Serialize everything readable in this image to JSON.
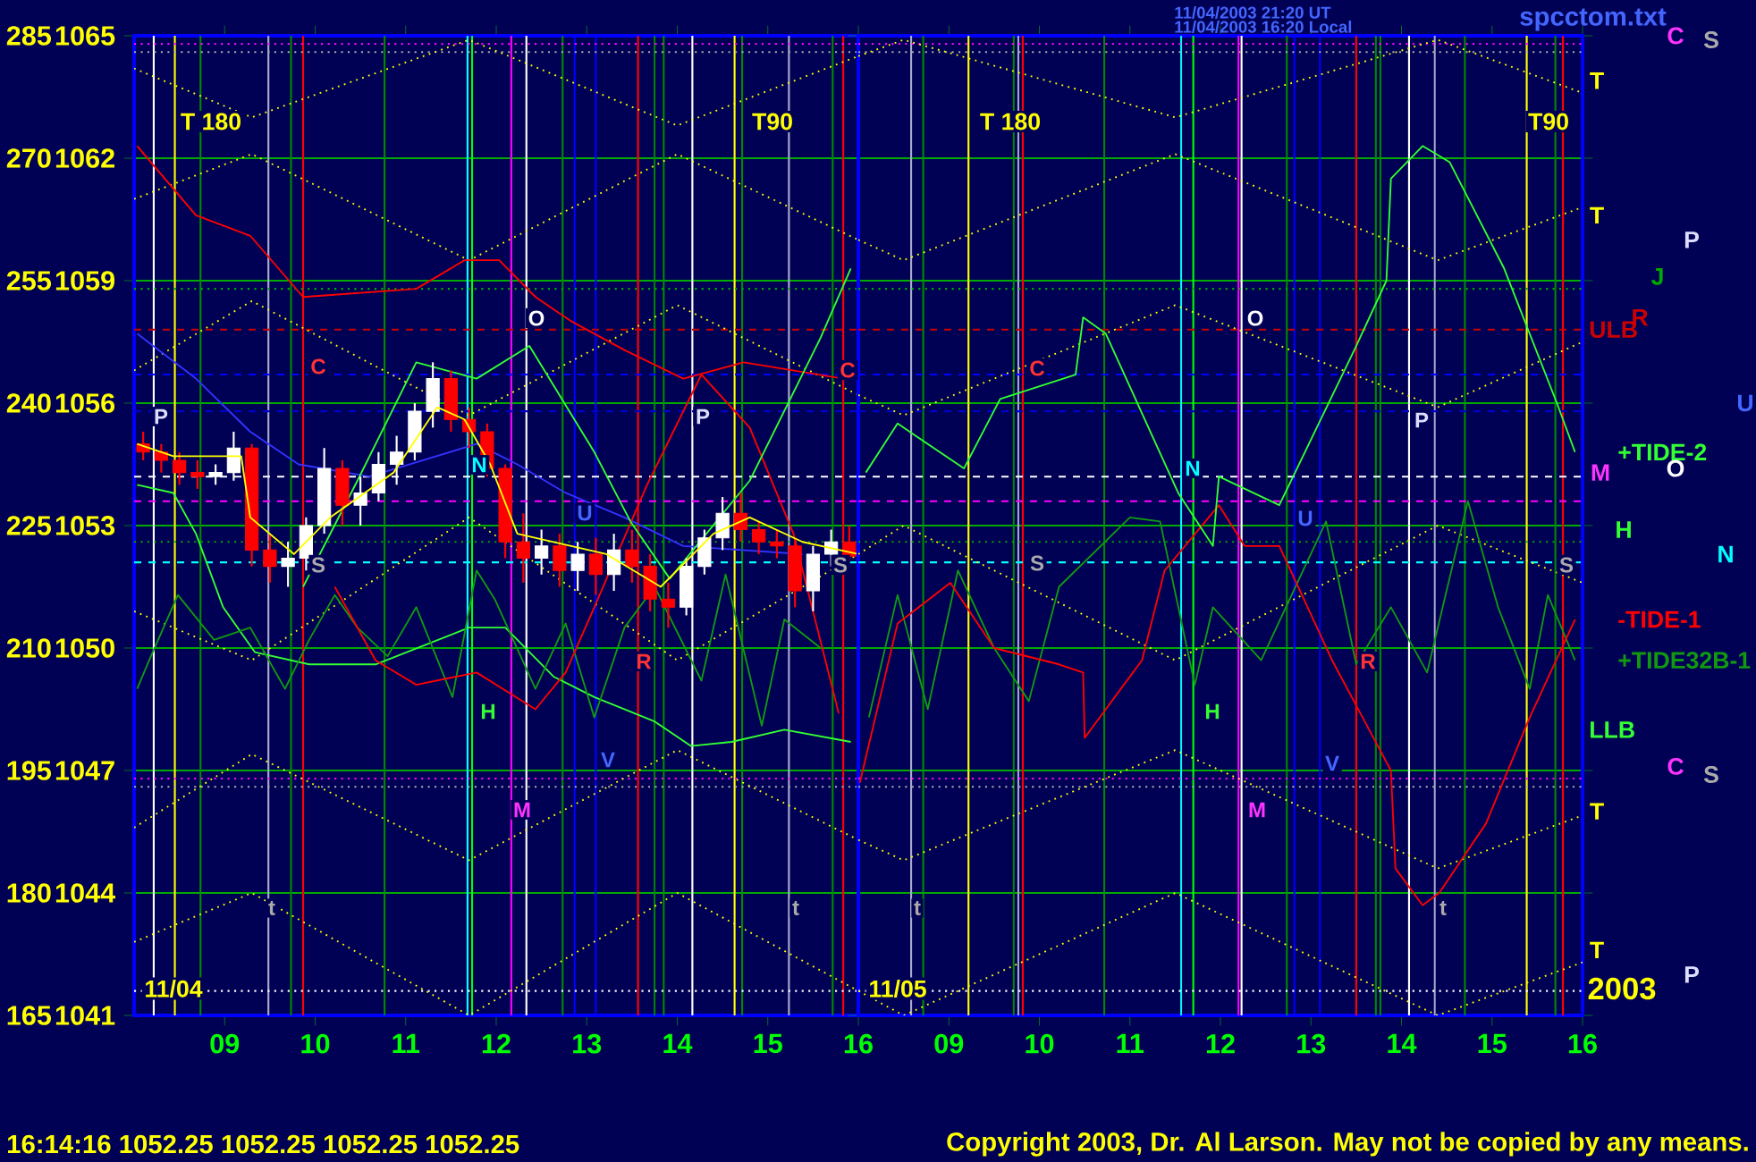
{
  "chart_data": [
    {
      "type": "line",
      "xlim": [
        "2003-11-04T08:00",
        "2003-11-04T16:00"
      ],
      "xticks": [
        {
          "value": "2003-11-04T09:00",
          "label": "09"
        },
        {
          "value": "2003-11-04T10:00",
          "label": "10"
        },
        {
          "value": "2003-11-04T11:00",
          "label": "11"
        },
        {
          "value": "2003-11-04T12:00",
          "label": "12"
        },
        {
          "value": "2003-11-04T13:00",
          "label": "13"
        },
        {
          "value": "2003-11-04T14:00",
          "label": "14"
        },
        {
          "value": "2003-11-04T15:00",
          "label": "15"
        },
        {
          "value": "2003-11-04T16:00",
          "label": "16"
        }
      ],
      "ylim": [
        1041,
        1065
      ],
      "yticks": [
        1041,
        1044,
        1047,
        1050,
        1053,
        1056,
        1059,
        1062,
        1065
      ],
      "y2lim": [
        165,
        285
      ],
      "y2ticks": [
        165,
        180,
        195,
        210,
        225,
        240,
        255,
        270,
        285
      ],
      "grid": "y",
      "series": [
        {
          "color": "#ffff00",
          "line_style": "dotted",
          "x": [
            "2003-11-04T08:00",
            "2003-11-04T09:18",
            "2003-11-04T11:42",
            "2003-11-04T14:00",
            "2003-11-04T16:00"
          ],
          "values": [
            1064.2,
            1063.0,
            1064.9,
            1062.8,
            1064.5
          ]
        },
        {
          "color": "#ffff00",
          "line_style": "dotted",
          "x": [
            "2003-11-04T08:00",
            "2003-11-04T09:18",
            "2003-11-04T11:42",
            "2003-11-04T14:00",
            "2003-11-04T16:00"
          ],
          "values": [
            1061.0,
            1062.1,
            1059.5,
            1062.1,
            1060.0
          ]
        },
        {
          "color": "#ffff00",
          "line_style": "dotted",
          "x": [
            "2003-11-04T08:00",
            "2003-11-04T09:18",
            "2003-11-04T11:42",
            "2003-11-04T14:00",
            "2003-11-04T16:00"
          ],
          "values": [
            1056.8,
            1058.5,
            1055.7,
            1058.4,
            1056.2
          ]
        },
        {
          "color": "#ffff00",
          "line_style": "dotted",
          "x": [
            "2003-11-04T08:00",
            "2003-11-04T09:18",
            "2003-11-04T11:42",
            "2003-11-04T14:00",
            "2003-11-04T16:00"
          ],
          "values": [
            1050.9,
            1049.7,
            1053.2,
            1049.7,
            1052.3
          ]
        },
        {
          "color": "#ffff00",
          "line_style": "dotted",
          "x": [
            "2003-11-04T08:00",
            "2003-11-04T09:18",
            "2003-11-04T11:42",
            "2003-11-04T14:00",
            "2003-11-04T16:00"
          ],
          "values": [
            1045.6,
            1047.4,
            1044.8,
            1047.5,
            1045.3
          ]
        },
        {
          "color": "#ffff00",
          "line_style": "dotted",
          "x": [
            "2003-11-04T08:00",
            "2003-11-04T09:18",
            "2003-11-04T11:42",
            "2003-11-04T14:00",
            "2003-11-04T16:00"
          ],
          "values": [
            1042.8,
            1044.0,
            1041.0,
            1044.0,
            1041.6
          ]
        },
        {
          "color": "#ff0000",
          "x": [
            "2003-11-04T08:02",
            "2003-11-04T08:41",
            "2003-11-04T09:17",
            "2003-11-04T09:52",
            "2003-11-04T11:07",
            "2003-11-04T11:39",
            "2003-11-04T12:02",
            "2003-11-04T12:26",
            "2003-11-04T12:50",
            "2003-11-04T13:25",
            "2003-11-04T14:04",
            "2003-11-04T14:44",
            "2003-11-04T15:50"
          ],
          "values": [
            1062.3,
            1060.6,
            1060.1,
            1058.6,
            1058.8,
            1059.5,
            1059.5,
            1058.6,
            1058.0,
            1057.3,
            1056.6,
            1057.0,
            1056.6
          ]
        },
        {
          "color": "#3333ff",
          "x": [
            "2003-11-04T08:02",
            "2003-11-04T08:41",
            "2003-11-04T09:17",
            "2003-11-04T09:49",
            "2003-11-04T10:36",
            "2003-11-04T11:47",
            "2003-11-04T12:14",
            "2003-11-04T12:46",
            "2003-11-04T13:25",
            "2003-11-04T14:04",
            "2003-11-04T15:23"
          ],
          "values": [
            1057.7,
            1056.6,
            1055.3,
            1054.5,
            1054.2,
            1055.0,
            1054.5,
            1053.8,
            1053.2,
            1052.5,
            1052.3
          ]
        },
        {
          "color": "#33ff33",
          "x": [
            "2003-11-04T08:02",
            "2003-11-04T08:26",
            "2003-11-04T08:41",
            "2003-11-04T08:59",
            "2003-11-04T09:20",
            "2003-11-04T09:56",
            "2003-11-04T10:40",
            "2003-11-04T11:42",
            "2003-11-04T12:06",
            "2003-11-04T12:38",
            "2003-11-04T13:05",
            "2003-11-04T13:45",
            "2003-11-04T14:09",
            "2003-11-04T14:36",
            "2003-11-04T15:11",
            "2003-11-04T15:55"
          ],
          "values": [
            1054.0,
            1053.8,
            1052.8,
            1051.0,
            1049.9,
            1049.6,
            1049.6,
            1050.5,
            1050.5,
            1049.3,
            1048.8,
            1048.2,
            1047.6,
            1047.7,
            1048.0,
            1047.7
          ]
        },
        {
          "color": "#119911",
          "x": [
            "2003-11-04T08:02",
            "2003-11-04T08:10",
            "2003-11-04T08:29",
            "2003-11-04T08:53",
            "2003-11-04T09:17",
            "2003-11-04T09:40",
            "2003-11-04T09:56",
            "2003-11-04T10:13",
            "2003-11-04T10:28",
            "2003-11-04T10:48",
            "2003-11-04T11:07",
            "2003-11-04T11:31",
            "2003-11-04T11:47",
            "2003-11-04T11:59",
            "2003-11-04T12:26",
            "2003-11-04T12:46",
            "2003-11-04T13:05",
            "2003-11-04T13:25",
            "2003-11-04T13:45",
            "2003-11-04T14:16",
            "2003-11-04T14:32",
            "2003-11-04T14:56",
            "2003-11-04T15:11",
            "2003-11-04T15:35"
          ],
          "values": [
            1049.0,
            1049.7,
            1051.3,
            1050.2,
            1050.5,
            1049.0,
            1050.2,
            1051.3,
            1050.5,
            1049.8,
            1051.0,
            1048.8,
            1051.9,
            1051.2,
            1049.0,
            1050.6,
            1048.3,
            1050.5,
            1051.5,
            1049.2,
            1051.8,
            1048.1,
            1050.7,
            1050.0
          ]
        },
        {
          "color": "#ff0000",
          "x": [
            "2003-11-04T10:13",
            "2003-11-04T10:40",
            "2003-11-04T11:07",
            "2003-11-04T11:47",
            "2003-11-04T12:26",
            "2003-11-04T12:46",
            "2003-11-04T13:05",
            "2003-11-04T13:40",
            "2003-11-04T14:16",
            "2003-11-04T14:48",
            "2003-11-04T15:17",
            "2003-11-04T15:47"
          ],
          "values": [
            1051.5,
            1049.7,
            1049.1,
            1049.4,
            1048.5,
            1049.4,
            1051.0,
            1054.0,
            1056.7,
            1055.4,
            1052.8,
            1048.4
          ]
        },
        {
          "color": "#33ff33",
          "x": [
            "2003-11-04T09:52",
            "2003-11-04T10:28",
            "2003-11-04T11:07",
            "2003-11-04T11:47",
            "2003-11-04T12:22",
            "2003-11-04T13:05",
            "2003-11-04T13:29",
            "2003-11-04T13:55",
            "2003-11-04T14:48",
            "2003-11-04T15:35",
            "2003-11-04T15:55"
          ],
          "values": [
            1051.5,
            1054.1,
            1057.0,
            1056.6,
            1057.4,
            1054.8,
            1053.1,
            1051.7,
            1054.1,
            1057.6,
            1059.3
          ]
        },
        {
          "type": "candlestick",
          "x": [
            "2003-11-04T08:06",
            "2003-11-04T08:18",
            "2003-11-04T08:30",
            "2003-11-04T08:42",
            "2003-11-04T08:54",
            "2003-11-04T09:06",
            "2003-11-04T09:18",
            "2003-11-04T09:30",
            "2003-11-04T09:42",
            "2003-11-04T09:54",
            "2003-11-04T10:06",
            "2003-11-04T10:18",
            "2003-11-04T10:30",
            "2003-11-04T10:42",
            "2003-11-04T10:54",
            "2003-11-04T11:06",
            "2003-11-04T11:18",
            "2003-11-04T11:30",
            "2003-11-04T11:42",
            "2003-11-04T11:54",
            "2003-11-04T12:06",
            "2003-11-04T12:18",
            "2003-11-04T12:30",
            "2003-11-04T12:42",
            "2003-11-04T12:54",
            "2003-11-04T13:06",
            "2003-11-04T13:18",
            "2003-11-04T13:30",
            "2003-11-04T13:42",
            "2003-11-04T13:54",
            "2003-11-04T14:06",
            "2003-11-04T14:18",
            "2003-11-04T14:30",
            "2003-11-04T14:42",
            "2003-11-04T14:54",
            "2003-11-04T15:06",
            "2003-11-04T15:18",
            "2003-11-04T15:30",
            "2003-11-04T15:42",
            "2003-11-04T15:54"
          ],
          "ohlc": [
            [
              1055.0,
              1055.3,
              1054.6,
              1054.8
            ],
            [
              1054.8,
              1055.0,
              1054.3,
              1054.6
            ],
            [
              1054.6,
              1054.8,
              1054.0,
              1054.3
            ],
            [
              1054.3,
              1054.6,
              1053.9,
              1054.2
            ],
            [
              1054.2,
              1054.5,
              1054.0,
              1054.3
            ],
            [
              1054.3,
              1055.3,
              1054.1,
              1054.9
            ],
            [
              1054.9,
              1055.0,
              1052.0,
              1052.4
            ],
            [
              1052.4,
              1052.8,
              1051.6,
              1052.0
            ],
            [
              1052.0,
              1052.6,
              1051.5,
              1052.2
            ],
            [
              1052.2,
              1053.2,
              1051.9,
              1053.0
            ],
            [
              1053.0,
              1054.9,
              1052.8,
              1054.4
            ],
            [
              1054.4,
              1054.6,
              1053.0,
              1053.5
            ],
            [
              1053.5,
              1054.2,
              1053.0,
              1053.8
            ],
            [
              1053.8,
              1054.8,
              1053.6,
              1054.5
            ],
            [
              1054.5,
              1055.2,
              1054.0,
              1054.8
            ],
            [
              1054.8,
              1056.0,
              1054.6,
              1055.8
            ],
            [
              1055.8,
              1057.0,
              1055.4,
              1056.6
            ],
            [
              1056.6,
              1056.8,
              1055.3,
              1055.6
            ],
            [
              1055.6,
              1055.9,
              1054.9,
              1055.3
            ],
            [
              1055.3,
              1055.5,
              1054.2,
              1054.4
            ],
            [
              1054.4,
              1054.5,
              1052.2,
              1052.6
            ],
            [
              1052.6,
              1053.3,
              1051.6,
              1052.2
            ],
            [
              1052.2,
              1052.9,
              1051.8,
              1052.5
            ],
            [
              1052.5,
              1052.8,
              1051.5,
              1051.9
            ],
            [
              1051.9,
              1052.6,
              1051.4,
              1052.3
            ],
            [
              1052.3,
              1052.7,
              1051.3,
              1051.8
            ],
            [
              1051.8,
              1052.8,
              1051.4,
              1052.4
            ],
            [
              1052.4,
              1052.9,
              1051.6,
              1052.0
            ],
            [
              1052.0,
              1052.3,
              1050.9,
              1051.2
            ],
            [
              1051.2,
              1051.6,
              1050.5,
              1051.0
            ],
            [
              1051.0,
              1052.2,
              1050.8,
              1052.0
            ],
            [
              1052.0,
              1052.9,
              1051.8,
              1052.7
            ],
            [
              1052.7,
              1053.7,
              1052.4,
              1053.3
            ],
            [
              1053.3,
              1053.8,
              1052.6,
              1052.9
            ],
            [
              1052.9,
              1053.1,
              1052.3,
              1052.6
            ],
            [
              1052.6,
              1052.9,
              1052.2,
              1052.5
            ],
            [
              1052.5,
              1052.7,
              1051.0,
              1051.4
            ],
            [
              1051.4,
              1052.5,
              1050.9,
              1052.3
            ],
            [
              1052.3,
              1052.9,
              1052.0,
              1052.6
            ],
            [
              1052.6,
              1053.0,
              1052.1,
              1052.25
            ]
          ],
          "colors": [
            "#ff0000",
            "#ff0000",
            "#ff0000",
            "#ff0000",
            "#ffffff",
            "#ffffff",
            "#ff0000",
            "#ff0000",
            "#ffffff",
            "#ffffff",
            "#ffffff",
            "#ff0000",
            "#ffffff",
            "#ffffff",
            "#ffffff",
            "#ffffff",
            "#ffffff",
            "#ff0000",
            "#ff0000",
            "#ff0000",
            "#ff0000",
            "#ff0000",
            "#ffffff",
            "#ff0000",
            "#ffffff",
            "#ff0000",
            "#ffffff",
            "#ff0000",
            "#ff0000",
            "#ff0000",
            "#ffffff",
            "#ffffff",
            "#ffffff",
            "#ff0000",
            "#ff0000",
            "#ff0000",
            "#ff0000",
            "#ffffff",
            "#ffffff",
            "#ff0000"
          ]
        },
        {
          "color": "#ffff00",
          "x": [
            "2003-11-04T08:02",
            "2003-11-04T08:26",
            "2003-11-04T09:11",
            "2003-11-04T09:17",
            "2003-11-04T09:46",
            "2003-11-04T10:10",
            "2003-11-04T10:52",
            "2003-11-04T11:21",
            "2003-11-04T11:39",
            "2003-11-04T11:56",
            "2003-11-04T12:14",
            "2003-11-04T13:13",
            "2003-11-04T13:49",
            "2003-11-04T14:24",
            "2003-11-04T14:48",
            "2003-11-04T15:23",
            "2003-11-04T16:00"
          ],
          "values": [
            1055.0,
            1054.7,
            1054.7,
            1053.2,
            1052.3,
            1053.2,
            1054.3,
            1055.9,
            1055.6,
            1054.5,
            1052.8,
            1052.3,
            1051.5,
            1052.8,
            1053.2,
            1052.6,
            1052.3
          ]
        }
      ],
      "ref_lines": [
        {
          "axis": "x",
          "value": "2003-11-04T08:13",
          "color": "#ffffff"
        },
        {
          "axis": "x",
          "value": "2003-11-04T08:27",
          "color": "#ffff00"
        },
        {
          "axis": "x",
          "value": "2003-11-04T08:44",
          "color": "#008800"
        },
        {
          "axis": "x",
          "value": "2003-11-04T09:29",
          "color": "#aaaacc"
        },
        {
          "axis": "x",
          "value": "2003-11-04T09:44",
          "color": "#008800"
        },
        {
          "axis": "x",
          "value": "2003-11-04T09:52",
          "color": "#ff0000"
        },
        {
          "axis": "x",
          "value": "2003-11-04T10:46",
          "color": "#008800"
        },
        {
          "axis": "x",
          "value": "2003-11-04T11:41",
          "color": "#00ffff"
        },
        {
          "axis": "x",
          "value": "2003-11-04T11:44",
          "color": "#00ff00"
        },
        {
          "axis": "x",
          "value": "2003-11-04T12:10",
          "color": "#ff00ff"
        },
        {
          "axis": "x",
          "value": "2003-11-04T12:20",
          "color": "#ffffff"
        },
        {
          "axis": "x",
          "value": "2003-11-04T12:44",
          "color": "#008800"
        },
        {
          "axis": "x",
          "value": "2003-11-04T12:52",
          "color": "#0000ff"
        },
        {
          "axis": "x",
          "value": "2003-11-04T13:06",
          "color": "#0000ff"
        },
        {
          "axis": "x",
          "value": "2003-11-04T13:34",
          "color": "#ff0000"
        },
        {
          "axis": "x",
          "value": "2003-11-04T13:45",
          "color": "#008800"
        },
        {
          "axis": "x",
          "value": "2003-11-04T13:51",
          "color": "#008800"
        },
        {
          "axis": "x",
          "value": "2003-11-04T14:10",
          "color": "#ffffff"
        },
        {
          "axis": "x",
          "value": "2003-11-04T14:38",
          "color": "#ffff00"
        },
        {
          "axis": "x",
          "value": "2003-11-04T14:43",
          "color": "#008800"
        },
        {
          "axis": "x",
          "value": "2003-11-04T15:14",
          "color": "#aaaacc"
        },
        {
          "axis": "x",
          "value": "2003-11-04T15:43",
          "color": "#008800"
        },
        {
          "axis": "x",
          "value": "2003-11-04T15:50",
          "color": "#ff0000"
        },
        {
          "axis": "y",
          "value": 1064.8,
          "color": "#ff00ff",
          "line_style": "dotted"
        },
        {
          "axis": "y",
          "value": 1064.6,
          "color": "#aaaaaa",
          "line_style": "dotted"
        },
        {
          "axis": "y",
          "value": 1058.8,
          "color": "#00aa00",
          "line_style": "dotted"
        },
        {
          "axis": "y",
          "value": 1057.8,
          "color": "#cc0000",
          "line_style": "dashed"
        },
        {
          "axis": "y",
          "value": 1056.7,
          "color": "#0000ff",
          "line_style": "dashed"
        },
        {
          "axis": "y",
          "value": 1055.8,
          "color": "#0000cc",
          "line_style": "dashed"
        },
        {
          "axis": "y",
          "value": 1054.2,
          "color": "#ffffff",
          "line_style": "dashed"
        },
        {
          "axis": "y",
          "value": 1053.6,
          "color": "#ff00ff",
          "line_style": "dashed"
        },
        {
          "axis": "y",
          "value": 1052.6,
          "color": "#00aa00",
          "line_style": "dotted"
        },
        {
          "axis": "y",
          "value": 1052.1,
          "color": "#00ffff",
          "line_style": "dashed"
        },
        {
          "axis": "y",
          "value": 1046.8,
          "color": "#ff00ff",
          "line_style": "dotted"
        },
        {
          "axis": "y",
          "value": 1046.6,
          "color": "#aaaaaa",
          "line_style": "dotted"
        },
        {
          "axis": "y",
          "value": 1041.6,
          "color": "#ffffff",
          "line_style": "dotted"
        }
      ],
      "annotations": [
        "11/04/2003 21:20 UT",
        "11/04/2003 16:20 Local",
        "spcctom.txt",
        "16:14:16 1052.25 1052.25 1052.25 1052.25",
        "Copyright 2003, Dr. Al Larson. May not be copied by any means.",
        "T 180",
        "T90",
        "11/04",
        "P",
        "C",
        "S",
        "N",
        "O",
        "U",
        "P",
        "C",
        "S",
        "H",
        "V",
        "M",
        "R",
        "t",
        "t"
      ]
    },
    {
      "type": "line",
      "xlim": [
        "2003-11-05T08:00",
        "2003-11-05T16:00"
      ],
      "xticks": [
        {
          "value": "2003-11-05T09:00",
          "label": "09"
        },
        {
          "value": "2003-11-05T10:00",
          "label": "10"
        },
        {
          "value": "2003-11-05T11:00",
          "label": "11"
        },
        {
          "value": "2003-11-05T12:00",
          "label": "12"
        },
        {
          "value": "2003-11-05T13:00",
          "label": "13"
        },
        {
          "value": "2003-11-05T14:00",
          "label": "14"
        },
        {
          "value": "2003-11-05T15:00",
          "label": "15"
        },
        {
          "value": "2003-11-05T16:00",
          "label": "16"
        }
      ],
      "ylim": [
        1041,
        1065
      ],
      "yticks": [
        1041,
        1044,
        1047,
        1050,
        1053,
        1056,
        1059,
        1062,
        1065
      ],
      "tick_labels": "x",
      "grid": "y",
      "series": [
        {
          "color": "#ffff00",
          "line_style": "dotted",
          "x": [
            "2003-11-05T08:00",
            "2003-11-05T08:30",
            "2003-11-05T11:30",
            "2003-11-05T14:24",
            "2003-11-05T16:00"
          ],
          "values": [
            1064.5,
            1064.9,
            1063.0,
            1064.9,
            1063.6
          ]
        },
        {
          "color": "#ffff00",
          "line_style": "dotted",
          "x": [
            "2003-11-05T08:00",
            "2003-11-05T08:30",
            "2003-11-05T11:30",
            "2003-11-05T14:24",
            "2003-11-05T16:00"
          ],
          "values": [
            1060.0,
            1059.5,
            1062.1,
            1059.5,
            1060.8
          ]
        },
        {
          "color": "#ffff00",
          "line_style": "dotted",
          "x": [
            "2003-11-05T08:00",
            "2003-11-05T08:30",
            "2003-11-05T11:30",
            "2003-11-05T14:24",
            "2003-11-05T16:00"
          ],
          "values": [
            1056.2,
            1055.7,
            1058.4,
            1055.9,
            1057.5
          ]
        },
        {
          "color": "#ffff00",
          "line_style": "dotted",
          "x": [
            "2003-11-05T08:00",
            "2003-11-05T08:30",
            "2003-11-05T11:30",
            "2003-11-05T14:24",
            "2003-11-05T16:00"
          ],
          "values": [
            1052.3,
            1053.0,
            1049.7,
            1053.0,
            1051.6
          ]
        },
        {
          "color": "#ffff00",
          "line_style": "dotted",
          "x": [
            "2003-11-05T08:00",
            "2003-11-05T08:30",
            "2003-11-05T11:30",
            "2003-11-05T14:24",
            "2003-11-05T16:00"
          ],
          "values": [
            1045.3,
            1044.8,
            1047.5,
            1044.6,
            1045.9
          ]
        },
        {
          "color": "#ffff00",
          "line_style": "dotted",
          "x": [
            "2003-11-05T08:00",
            "2003-11-05T08:30",
            "2003-11-05T11:30",
            "2003-11-05T14:24",
            "2003-11-05T16:00"
          ],
          "values": [
            1041.6,
            1041.0,
            1044.0,
            1041.0,
            1042.3
          ]
        },
        {
          "name": "+TIDE32B-1",
          "color": "#119911",
          "x": [
            "2003-11-05T08:07",
            "2003-11-05T08:26",
            "2003-11-05T08:46",
            "2003-11-05T09:06",
            "2003-11-05T09:30",
            "2003-11-05T09:53",
            "2003-11-05T10:13",
            "2003-11-05T11:00",
            "2003-11-05T11:20",
            "2003-11-05T11:43",
            "2003-11-05T11:55",
            "2003-11-05T12:27",
            "2003-11-05T12:51",
            "2003-11-05T13:10",
            "2003-11-05T13:30",
            "2003-11-05T13:53",
            "2003-11-05T14:17",
            "2003-11-05T14:44",
            "2003-11-05T15:04",
            "2003-11-05T15:25",
            "2003-11-05T15:37",
            "2003-11-05T15:55"
          ],
          "values": [
            1048.3,
            1051.3,
            1048.5,
            1051.9,
            1050.0,
            1048.7,
            1051.5,
            1053.2,
            1053.1,
            1049.1,
            1051.0,
            1049.7,
            1051.6,
            1053.1,
            1049.6,
            1051.0,
            1049.4,
            1053.6,
            1051.0,
            1049.0,
            1051.3,
            1049.7
          ]
        },
        {
          "name": "-TIDE-1",
          "color": "#ff0000",
          "x": [
            "2003-11-05T08:01",
            "2003-11-05T08:26",
            "2003-11-05T09:01",
            "2003-11-05T09:30",
            "2003-11-05T10:13",
            "2003-11-05T10:29",
            "2003-11-05T10:30",
            "2003-11-05T11:08",
            "2003-11-05T11:23",
            "2003-11-05T11:59",
            "2003-11-05T12:16",
            "2003-11-05T12:39",
            "2003-11-05T13:14",
            "2003-11-05T13:53",
            "2003-11-05T13:56",
            "2003-11-05T14:14",
            "2003-11-05T14:25",
            "2003-11-05T14:56",
            "2003-11-05T15:25",
            "2003-11-05T15:55"
          ],
          "values": [
            1046.7,
            1050.6,
            1051.6,
            1050.0,
            1049.6,
            1049.4,
            1047.8,
            1049.7,
            1051.9,
            1053.5,
            1052.5,
            1052.5,
            1049.7,
            1047.0,
            1044.6,
            1043.7,
            1044.0,
            1045.7,
            1048.3,
            1050.7
          ]
        },
        {
          "name": "+TIDE-2",
          "color": "#33ff33",
          "x": [
            "2003-11-05T08:05",
            "2003-11-05T08:26",
            "2003-11-05T09:10",
            "2003-11-05T09:34",
            "2003-11-05T10:24",
            "2003-11-05T10:29",
            "2003-11-05T10:44",
            "2003-11-05T11:32",
            "2003-11-05T11:55",
            "2003-11-05T11:59",
            "2003-11-05T12:39",
            "2003-11-05T13:30",
            "2003-11-05T13:50",
            "2003-11-05T13:53",
            "2003-11-05T14:14",
            "2003-11-05T14:32",
            "2003-11-05T15:08",
            "2003-11-05T15:43",
            "2003-11-05T15:55"
          ],
          "values": [
            1054.3,
            1055.5,
            1054.4,
            1056.1,
            1056.7,
            1058.1,
            1057.7,
            1053.8,
            1052.5,
            1054.2,
            1053.5,
            1057.4,
            1059.0,
            1061.5,
            1062.3,
            1061.9,
            1059.3,
            1056.0,
            1054.8
          ]
        }
      ],
      "ref_lines": [
        {
          "axis": "x",
          "value": "2003-11-05T08:35",
          "color": "#aaaacc"
        },
        {
          "axis": "x",
          "value": "2003-11-05T08:43",
          "color": "#008800"
        },
        {
          "axis": "x",
          "value": "2003-11-05T09:13",
          "color": "#ffff00"
        },
        {
          "axis": "x",
          "value": "2003-11-05T09:43",
          "color": "#008800"
        },
        {
          "axis": "x",
          "value": "2003-11-05T09:46",
          "color": "#aaaacc"
        },
        {
          "axis": "x",
          "value": "2003-11-05T09:49",
          "color": "#ff0000"
        },
        {
          "axis": "x",
          "value": "2003-11-05T10:43",
          "color": "#008800"
        },
        {
          "axis": "x",
          "value": "2003-11-05T11:34",
          "color": "#00ffff"
        },
        {
          "axis": "x",
          "value": "2003-11-05T11:42",
          "color": "#00ff00"
        },
        {
          "axis": "x",
          "value": "2003-11-05T12:12",
          "color": "#ff00ff"
        },
        {
          "axis": "x",
          "value": "2003-11-05T12:14",
          "color": "#ffffff"
        },
        {
          "axis": "x",
          "value": "2003-11-05T12:44",
          "color": "#008800"
        },
        {
          "axis": "x",
          "value": "2003-11-05T12:49",
          "color": "#0000ff"
        },
        {
          "axis": "x",
          "value": "2003-11-05T13:06",
          "color": "#0000ff"
        },
        {
          "axis": "x",
          "value": "2003-11-05T13:30",
          "color": "#ff0000"
        },
        {
          "axis": "x",
          "value": "2003-11-05T13:43",
          "color": "#008800"
        },
        {
          "axis": "x",
          "value": "2003-11-05T13:46",
          "color": "#008800"
        },
        {
          "axis": "x",
          "value": "2003-11-05T14:05",
          "color": "#ffffff"
        },
        {
          "axis": "x",
          "value": "2003-11-05T14:22",
          "color": "#aaaacc"
        },
        {
          "axis": "x",
          "value": "2003-11-05T14:42",
          "color": "#008800"
        },
        {
          "axis": "x",
          "value": "2003-11-05T15:23",
          "color": "#ffff00"
        },
        {
          "axis": "x",
          "value": "2003-11-05T15:42",
          "color": "#008800"
        },
        {
          "axis": "x",
          "value": "2003-11-05T15:47",
          "color": "#ff0000"
        },
        {
          "axis": "y",
          "value": 1064.8,
          "color": "#ff00ff",
          "line_style": "dotted"
        },
        {
          "axis": "y",
          "value": 1064.6,
          "color": "#aaaaaa",
          "line_style": "dotted"
        },
        {
          "axis": "y",
          "value": 1058.8,
          "color": "#00aa00",
          "line_style": "dotted"
        },
        {
          "axis": "y",
          "value": 1057.8,
          "color": "#cc0000",
          "line_style": "dashed",
          "label": "ULB"
        },
        {
          "axis": "y",
          "value": 1056.7,
          "color": "#0000ff",
          "line_style": "dashed"
        },
        {
          "axis": "y",
          "value": 1055.8,
          "color": "#0000cc",
          "line_style": "dashed"
        },
        {
          "axis": "y",
          "value": 1054.2,
          "color": "#ffffff",
          "line_style": "dashed"
        },
        {
          "axis": "y",
          "value": 1053.6,
          "color": "#ff00ff",
          "line_style": "dashed"
        },
        {
          "axis": "y",
          "value": 1052.6,
          "color": "#00aa00",
          "line_style": "dotted"
        },
        {
          "axis": "y",
          "value": 1052.1,
          "color": "#00ffff",
          "line_style": "dashed"
        },
        {
          "axis": "y",
          "value": 1046.8,
          "color": "#ff00ff",
          "line_style": "dotted"
        },
        {
          "axis": "y",
          "value": 1046.6,
          "color": "#aaaaaa",
          "line_style": "dotted"
        },
        {
          "axis": "y",
          "value": 1041.6,
          "color": "#ffffff",
          "line_style": "dotted"
        }
      ],
      "annotations": [
        "2003",
        "T 180",
        "T90",
        "11/05",
        "C",
        "S",
        "N",
        "O",
        "U",
        "P",
        "H",
        "V",
        "M",
        "R",
        "t",
        "t",
        "S",
        "T",
        "T",
        "C",
        "S",
        "P",
        "J",
        "R",
        "U",
        "M",
        "O",
        "H",
        "N",
        "LLB",
        "C",
        "S",
        "T",
        "T",
        "P"
      ]
    }
  ]
}
